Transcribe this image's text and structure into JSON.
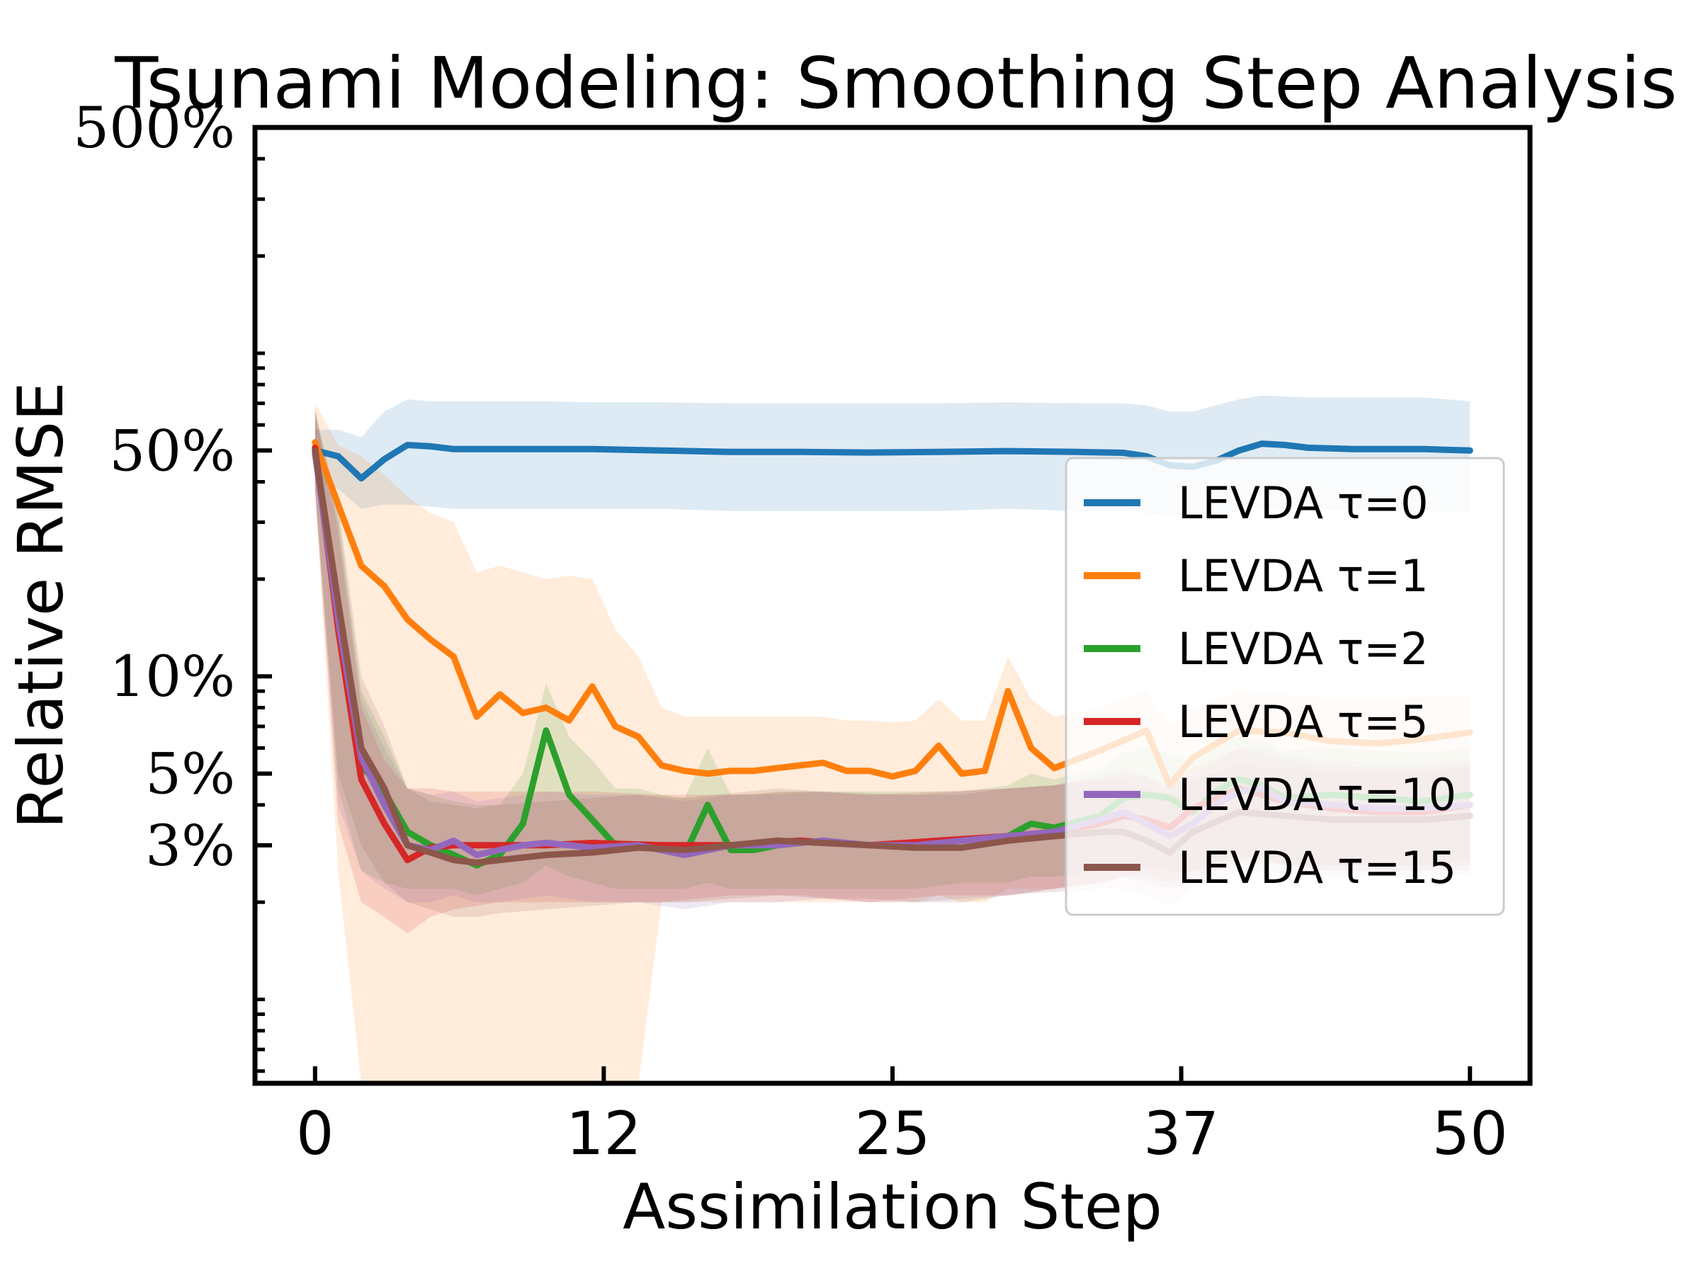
{
  "chart_data": {
    "type": "line",
    "title": "Tsunami Modeling: Smoothing Step Analysis",
    "xlabel": "Assimilation Step",
    "ylabel": "Relative RMSE",
    "y_scale": "log",
    "xlim": [
      -2.6,
      52.6
    ],
    "ylim": [
      0.55,
      500
    ],
    "x_ticks": [
      0,
      12.5,
      25,
      37.5,
      50
    ],
    "x_tick_labels": [
      "0",
      "12",
      "25",
      "37",
      "50"
    ],
    "y_ticks": [
      500,
      50,
      10,
      5,
      3
    ],
    "y_tick_labels": [
      "500%",
      "50%",
      "10%",
      "5%",
      "3%"
    ],
    "legend_position": "center-right",
    "series": [
      {
        "name": "LEVDA τ=0",
        "color": "#1f77b4",
        "x": [
          0,
          1,
          2,
          3,
          4,
          5,
          6,
          8,
          10,
          12,
          15,
          18,
          21,
          24,
          27,
          30,
          33,
          35,
          36,
          37,
          38,
          39,
          40,
          41,
          42,
          43,
          45,
          48,
          50
        ],
        "y": [
          50,
          48,
          41,
          47,
          52,
          51.5,
          50.5,
          50.5,
          50.5,
          50.5,
          50,
          49.5,
          49.5,
          49.3,
          49.5,
          49.8,
          49.5,
          49.2,
          48,
          45,
          44.5,
          46.5,
          50,
          52.5,
          52,
          51,
          50.5,
          50.5,
          50
        ],
        "band_lower": [
          40,
          38,
          33,
          34,
          34,
          33.5,
          33,
          33,
          33,
          33,
          33,
          32.5,
          32.5,
          32.5,
          32.5,
          33,
          32.5,
          32.5,
          32,
          31.5,
          31.5,
          32,
          32.5,
          33,
          33,
          33,
          32.5,
          32.5,
          32.5
        ],
        "band_upper": [
          58,
          58,
          55,
          66,
          72,
          71,
          71,
          71,
          71,
          70.5,
          70.5,
          70,
          70,
          70,
          70,
          70.5,
          70,
          70,
          69,
          66,
          66,
          69,
          72,
          74,
          73.5,
          73,
          73,
          73,
          71
        ]
      },
      {
        "name": "LEVDA τ=1",
        "color": "#ff7f0e",
        "x": [
          0,
          1,
          2,
          3,
          4,
          5,
          6,
          7,
          8,
          9,
          10,
          11,
          12,
          13,
          14,
          15,
          16,
          17,
          18,
          19,
          20,
          21,
          22,
          23,
          24,
          25,
          26,
          27,
          28,
          29,
          30,
          31,
          32,
          34,
          36,
          37,
          38,
          40,
          42,
          44,
          46,
          48,
          50
        ],
        "y": [
          53,
          34,
          22,
          19,
          15,
          13,
          11.5,
          7.5,
          8.8,
          7.7,
          8,
          7.3,
          9.3,
          7,
          6.5,
          5.3,
          5.1,
          5,
          5.1,
          5.1,
          5.2,
          5.3,
          5.4,
          5.1,
          5.1,
          4.9,
          5.1,
          6.1,
          5,
          5.1,
          9,
          6,
          5.2,
          5.9,
          6.8,
          4.6,
          5.6,
          6.8,
          6.7,
          6.3,
          6.2,
          6.4,
          6.7
        ],
        "band_lower": [
          38,
          2.5,
          0.55,
          0.55,
          0.55,
          0.55,
          0.55,
          0.55,
          0.55,
          0.55,
          0.55,
          0.55,
          0.55,
          0.55,
          0.55,
          2,
          2,
          2,
          2,
          2,
          2,
          2,
          2,
          2,
          2,
          2,
          2,
          2.1,
          2,
          2,
          2.2,
          2.2,
          2.2,
          2.3,
          2.5,
          2.3,
          2.4,
          2.6,
          2.6,
          2.6,
          2.6,
          2.6,
          2.6
        ],
        "band_upper": [
          70,
          52,
          48,
          42,
          36,
          32,
          30,
          21,
          22,
          21,
          20,
          20.5,
          20,
          14,
          11.5,
          8,
          7.5,
          7.5,
          7.5,
          7.5,
          7.5,
          7.5,
          7.5,
          7.3,
          7.3,
          7.2,
          7.3,
          8.5,
          7.3,
          7.3,
          11.5,
          8.5,
          7.5,
          8,
          9,
          7,
          8,
          9,
          8.8,
          8.5,
          8.5,
          8.6,
          8.7
        ]
      },
      {
        "name": "LEVDA τ=2",
        "color": "#2ca02c",
        "x": [
          0,
          1,
          2,
          3,
          4,
          5,
          6,
          7,
          8,
          9,
          10,
          11,
          12,
          13,
          14,
          15,
          16,
          17,
          18,
          19,
          20,
          22,
          24,
          26,
          28,
          30,
          31,
          32,
          34,
          35,
          36,
          37,
          38,
          39,
          40,
          41,
          42,
          44,
          46,
          48,
          50
        ],
        "y": [
          50,
          15,
          5.3,
          4.4,
          3.3,
          3,
          2.8,
          2.6,
          2.8,
          3.5,
          6.8,
          4.3,
          3.6,
          3,
          3,
          2.9,
          2.8,
          4,
          2.9,
          2.9,
          3,
          3.1,
          3,
          3,
          3.1,
          3.2,
          3.5,
          3.4,
          3.7,
          4.2,
          4.3,
          4.2,
          3.8,
          4.4,
          4.8,
          4.6,
          4.2,
          4.3,
          4.2,
          4.1,
          4.3
        ],
        "band_lower": [
          38,
          4.5,
          2.5,
          2.3,
          2.2,
          2.2,
          2.2,
          2.1,
          2.2,
          2.3,
          2.6,
          2.4,
          2.3,
          2.2,
          2.2,
          2.2,
          2.2,
          2.3,
          2.2,
          2.2,
          2.2,
          2.2,
          2.2,
          2.2,
          2.3,
          2.3,
          2.4,
          2.4,
          2.5,
          2.6,
          2.6,
          2.5,
          2.5,
          2.6,
          2.7,
          2.7,
          2.6,
          2.6,
          2.6,
          2.6,
          2.7
        ],
        "band_upper": [
          66,
          32,
          9,
          6.5,
          4.5,
          4.3,
          4.1,
          4,
          4,
          5,
          9.5,
          6.5,
          5.5,
          4.5,
          4.5,
          4.3,
          4.2,
          6,
          4.3,
          4.3,
          4.4,
          4.4,
          4.4,
          4.4,
          4.4,
          4.6,
          5,
          4.8,
          5.2,
          5.8,
          6,
          5.8,
          5.4,
          6,
          6.5,
          6.3,
          5.9,
          6,
          5.9,
          5.8,
          6
        ]
      },
      {
        "name": "LEVDA τ=5",
        "color": "#d62728",
        "x": [
          0,
          1,
          2,
          3,
          4,
          5,
          6,
          8,
          10,
          12,
          15,
          18,
          21,
          24,
          27,
          30,
          32,
          34,
          35,
          36,
          37,
          38,
          40,
          42,
          44,
          46,
          48,
          50
        ],
        "y": [
          51,
          14,
          4.8,
          3.5,
          2.7,
          2.95,
          3,
          3,
          3,
          3.05,
          3,
          3,
          3.1,
          3,
          3.1,
          3.2,
          3.3,
          3.5,
          3.7,
          3.6,
          3.4,
          3.9,
          4.5,
          4.1,
          3.9,
          3.8,
          3.8,
          4
        ],
        "band_lower": [
          38,
          3.5,
          2,
          1.8,
          1.6,
          1.8,
          1.9,
          2,
          2,
          2,
          2,
          2.1,
          2.1,
          2,
          2.1,
          2.1,
          2.2,
          2.3,
          2.4,
          2.4,
          2.3,
          2.5,
          2.8,
          2.6,
          2.5,
          2.5,
          2.5,
          2.6
        ],
        "band_upper": [
          68,
          28,
          8,
          5.5,
          4.5,
          4.5,
          4.4,
          4.4,
          4.4,
          4.4,
          4.3,
          4.3,
          4.4,
          4.3,
          4.4,
          4.5,
          4.6,
          4.8,
          5,
          4.9,
          4.6,
          5.2,
          6,
          5.5,
          5.3,
          5.2,
          5.2,
          5.4
        ]
      },
      {
        "name": "LEVDA τ=10",
        "color": "#9467bd",
        "x": [
          0,
          1,
          2,
          3,
          4,
          5,
          6,
          7,
          8,
          9,
          10,
          12,
          14,
          16,
          18,
          20,
          22,
          24,
          26,
          28,
          30,
          32,
          34,
          35,
          36,
          37,
          38,
          39,
          40,
          41,
          42,
          44,
          46,
          48,
          50
        ],
        "y": [
          49,
          15,
          5.6,
          4,
          3,
          2.9,
          3.1,
          2.8,
          2.9,
          3,
          3.05,
          2.95,
          3,
          2.8,
          3,
          3,
          3.1,
          3,
          3,
          3.1,
          3.2,
          3.3,
          3.6,
          3.8,
          3.5,
          3.2,
          3.5,
          4,
          4.4,
          4.5,
          4.1,
          4,
          3.9,
          3.9,
          4
        ],
        "band_lower": [
          37,
          4,
          2.5,
          2.2,
          2,
          2,
          2.1,
          2,
          2,
          2.05,
          2.1,
          2,
          2,
          1.9,
          2,
          2,
          2.05,
          2,
          2,
          2.05,
          2.1,
          2.2,
          2.3,
          2.4,
          2.3,
          2.2,
          2.3,
          2.5,
          2.7,
          2.8,
          2.6,
          2.5,
          2.5,
          2.5,
          2.5
        ],
        "band_upper": [
          64,
          30,
          8.5,
          6,
          4.5,
          4.3,
          4.4,
          4.1,
          4.2,
          4.3,
          4.4,
          4.3,
          4.3,
          4.1,
          4.3,
          4.3,
          4.4,
          4.3,
          4.3,
          4.4,
          4.5,
          4.6,
          5,
          5.2,
          4.9,
          4.5,
          4.9,
          5.5,
          6,
          6.1,
          5.7,
          5.5,
          5.4,
          5.4,
          5.5
        ]
      },
      {
        "name": "LEVDA τ=15",
        "color": "#8c564b",
        "x": [
          0,
          1,
          2,
          3,
          4,
          5,
          6,
          7,
          8,
          10,
          12,
          14,
          16,
          18,
          20,
          22,
          24,
          26,
          28,
          30,
          32,
          34,
          35,
          36,
          37,
          38,
          40,
          42,
          44,
          46,
          48,
          50
        ],
        "y": [
          50,
          17,
          6,
          4.5,
          3,
          2.85,
          2.7,
          2.65,
          2.7,
          2.8,
          2.85,
          2.95,
          2.9,
          3,
          3.1,
          3.05,
          3,
          2.95,
          2.95,
          3.1,
          3.2,
          3.3,
          3.3,
          3.1,
          2.85,
          3.3,
          3.8,
          3.7,
          3.6,
          3.6,
          3.6,
          3.7
        ],
        "band_lower": [
          38,
          5,
          3,
          2.3,
          2,
          1.9,
          1.8,
          1.8,
          1.85,
          1.9,
          1.95,
          2,
          2,
          2.05,
          2.1,
          2.05,
          2.05,
          2,
          2,
          2.1,
          2.15,
          2.2,
          2.2,
          2.1,
          1.95,
          2.2,
          2.5,
          2.45,
          2.4,
          2.4,
          2.4,
          2.45
        ],
        "band_upper": [
          66,
          34,
          10,
          7,
          4.5,
          4.1,
          4,
          3.9,
          4,
          4.1,
          4.2,
          4.3,
          4.2,
          4.35,
          4.5,
          4.4,
          4.35,
          4.3,
          4.3,
          4.5,
          4.6,
          4.8,
          4.8,
          4.5,
          4.2,
          4.8,
          5.3,
          5.2,
          5.1,
          5.1,
          5.1,
          5.2
        ]
      }
    ]
  }
}
